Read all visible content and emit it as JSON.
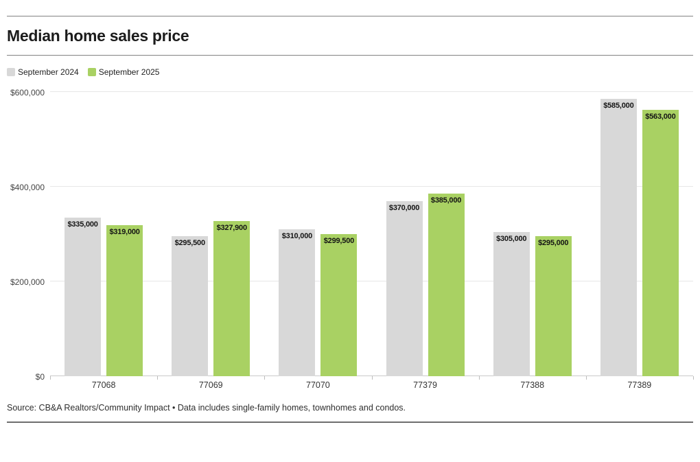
{
  "page": {
    "title": "Median home sales price",
    "source": "Source: CB&A Realtors/Community Impact • Data includes single-family homes, townhomes and condos."
  },
  "colors": {
    "series_2024": "#d8d8d8",
    "series_2025": "#a9d163",
    "gridline": "#e7e7e7",
    "rule": "#828282",
    "value_label": "#141414"
  },
  "chart_data": {
    "type": "bar",
    "title": "Median home sales price",
    "categories": [
      "77068",
      "77069",
      "77070",
      "77379",
      "77388",
      "77389"
    ],
    "series": [
      {
        "name": "September 2024",
        "color": "#d8d8d8",
        "values": [
          335000,
          295500,
          310000,
          370000,
          305000,
          585000
        ],
        "labels": [
          "$335,000",
          "$295,500",
          "$310,000",
          "$370,000",
          "$305,000",
          "$585,000"
        ]
      },
      {
        "name": "September 2025",
        "color": "#a9d163",
        "values": [
          319000,
          327900,
          299500,
          385000,
          295000,
          563000
        ],
        "labels": [
          "$319,000",
          "$327,900",
          "$299,500",
          "$385,000",
          "$295,000",
          "$563,000"
        ]
      }
    ],
    "xlabel": "",
    "ylabel": "",
    "ylim": [
      0,
      600000
    ],
    "yticks": [
      {
        "value": 0,
        "label": "$0"
      },
      {
        "value": 200000,
        "label": "$200,000"
      },
      {
        "value": 400000,
        "label": "$400,000"
      },
      {
        "value": 600000,
        "label": "$600,000"
      }
    ],
    "grid": true,
    "legend_position": "top-left",
    "value_labels_position": "inside-top"
  }
}
